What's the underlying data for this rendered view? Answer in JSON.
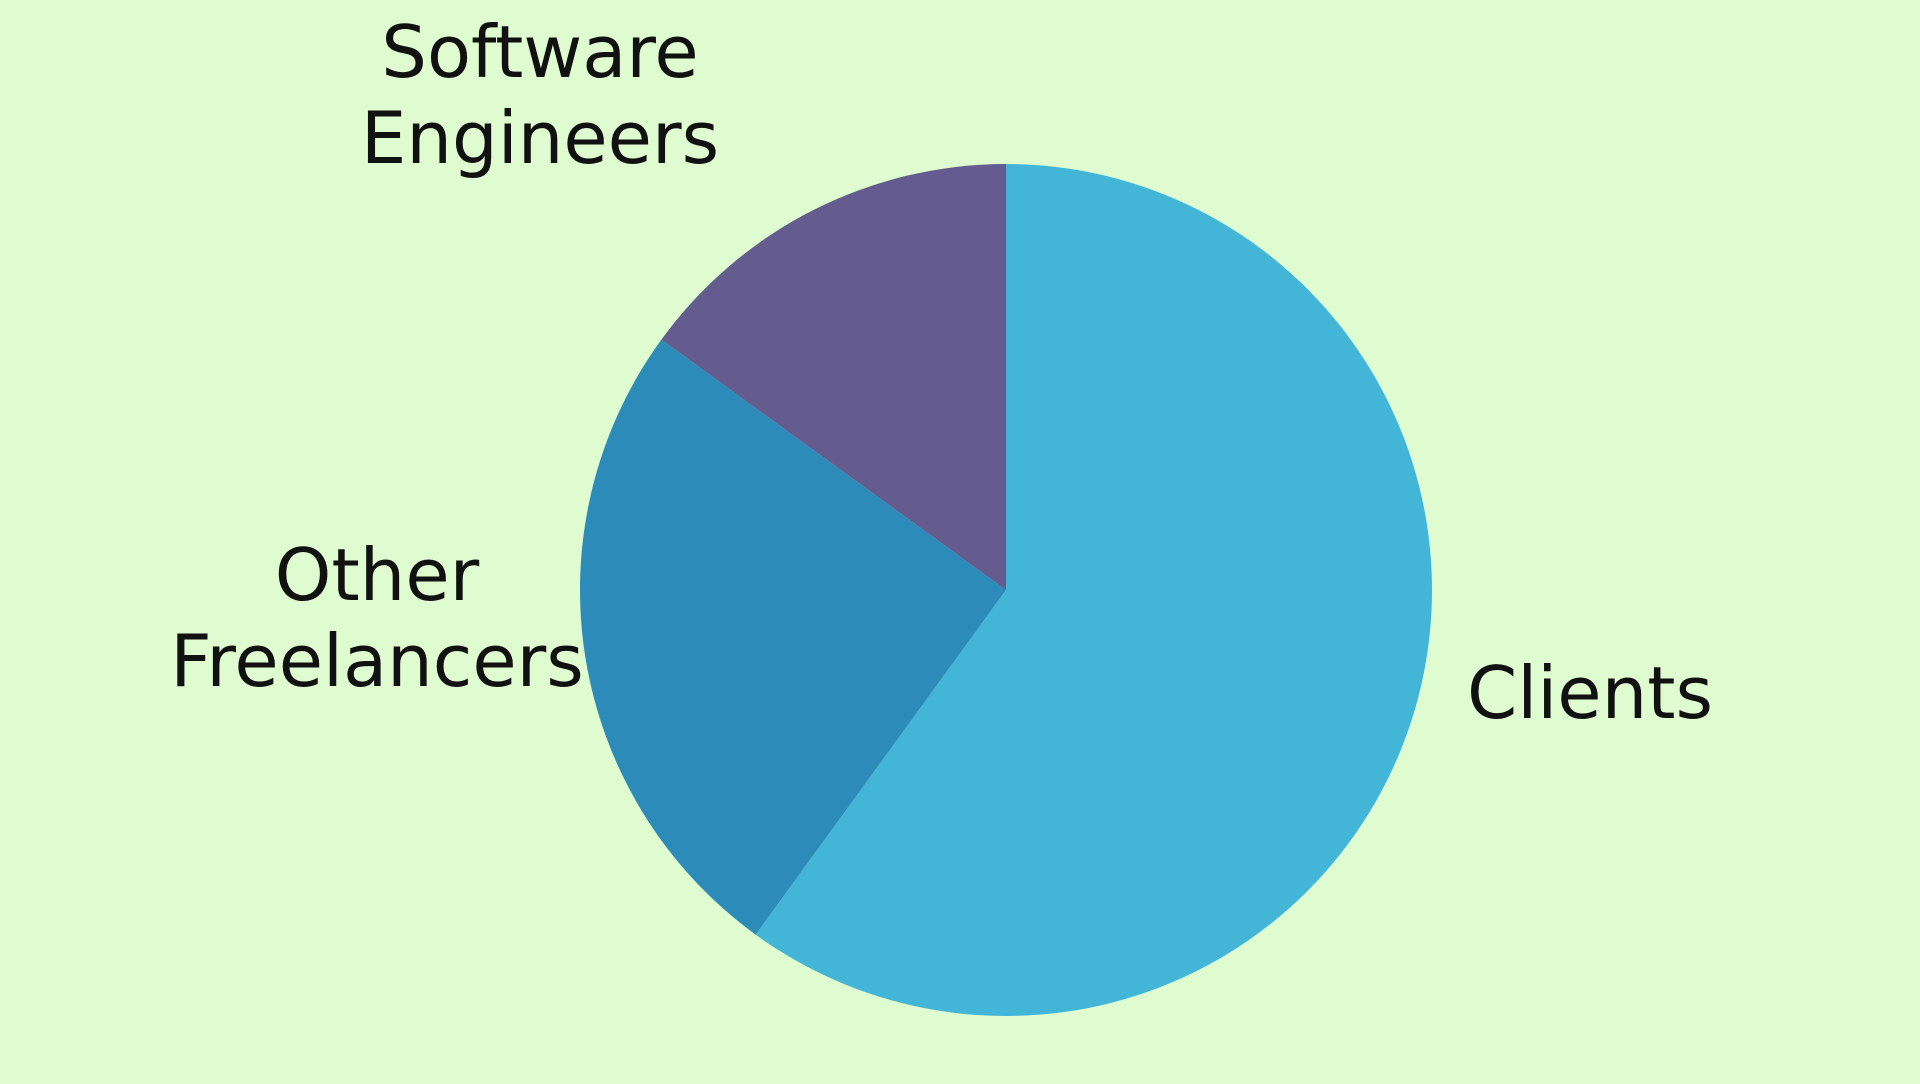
{
  "chart_data": {
    "type": "pie",
    "title": "",
    "start_angle_deg": 0,
    "direction": "clockwise",
    "slices": [
      {
        "label_lines": [
          "Clients"
        ],
        "value": 60,
        "color": "#43b6d8"
      },
      {
        "label_lines": [
          "Other",
          "Freelancers"
        ],
        "value": 25,
        "color": "#2d8bb9"
      },
      {
        "label_lines": [
          "Software",
          "Engineers"
        ],
        "value": 15,
        "color": "#645b8f"
      }
    ]
  },
  "colors": {
    "background": "#dffbd0",
    "label_text": "#111111"
  }
}
